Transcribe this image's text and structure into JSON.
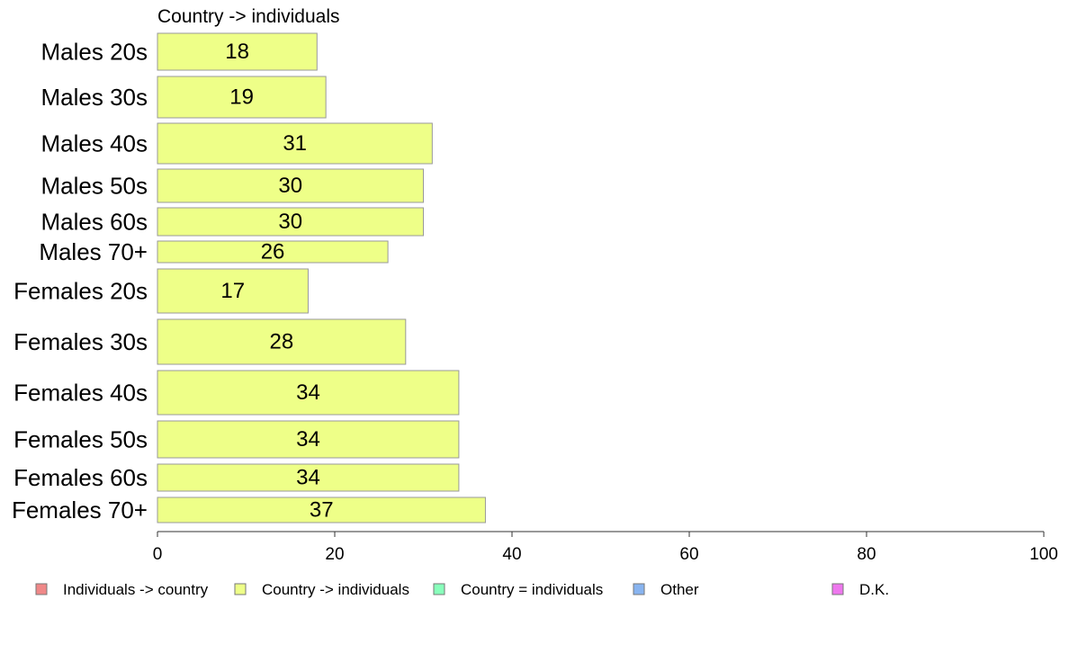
{
  "chart_data": {
    "type": "bar",
    "orientation": "horizontal",
    "subtitle": "Country -> individuals",
    "categories": [
      "Males 20s",
      "Males 30s",
      "Males 40s",
      "Males 50s",
      "Males 60s",
      "Males 70+",
      "Females 20s",
      "Females 30s",
      "Females 40s",
      "Females 50s",
      "Females 60s",
      "Females 70+"
    ],
    "series": [
      {
        "name": "Country -> individuals",
        "values": [
          18,
          19,
          31,
          30,
          30,
          26,
          17,
          28,
          34,
          34,
          34,
          37
        ],
        "color": "#eeff88"
      }
    ],
    "xlim": [
      0,
      100
    ],
    "xticks": [
      "0",
      "20",
      "40",
      "60",
      "80",
      "100"
    ],
    "xticks_values": [
      0,
      20,
      40,
      60,
      80,
      100
    ],
    "grid": false,
    "legend_position": "bottom",
    "legend": [
      {
        "label": "Individuals -> country",
        "color": "#f08888"
      },
      {
        "label": "Country -> individuals",
        "color": "#eeff88"
      },
      {
        "label": "Country = individuals",
        "color": "#88ffbb"
      },
      {
        "label": "Other",
        "color": "#88b4f0"
      },
      {
        "label": "D.K.",
        "color": "#ee77ee"
      }
    ]
  }
}
